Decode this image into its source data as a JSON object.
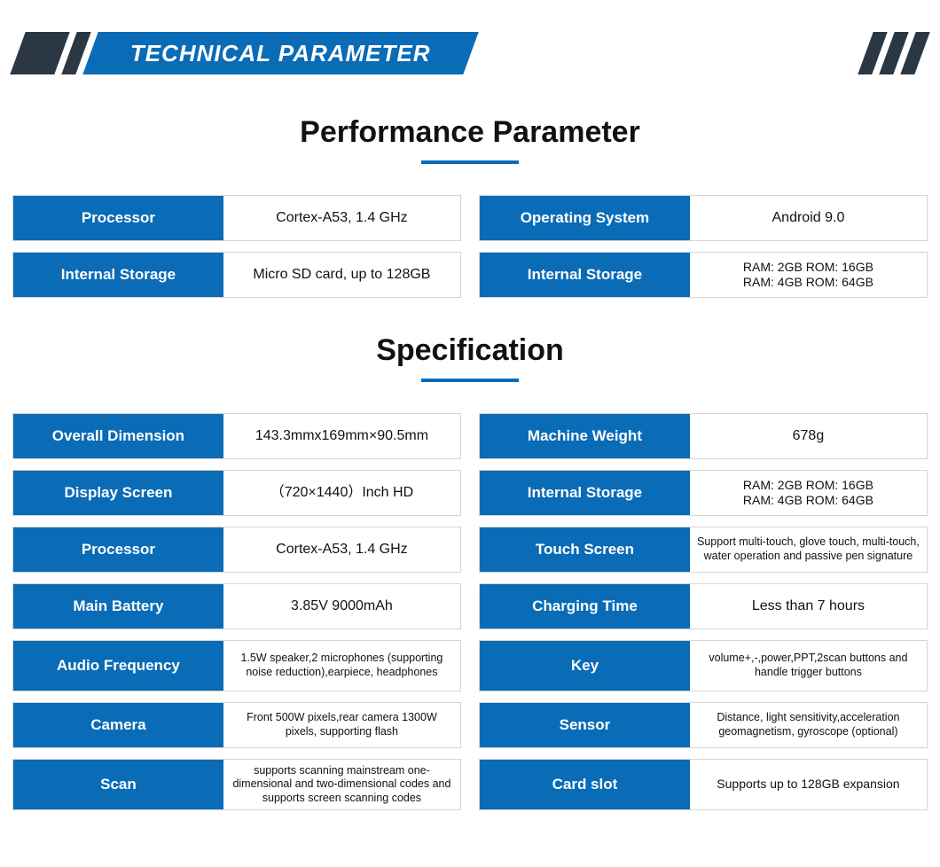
{
  "header": {
    "title": "TECHNICAL PARAMETER"
  },
  "colors": {
    "primary": "#0a6bb6",
    "dark": "#2b3844",
    "text": "#111111",
    "border": "#d5d5d5",
    "white": "#ffffff"
  },
  "sections": [
    {
      "title": "Performance Parameter",
      "left": [
        {
          "label": "Processor",
          "value": "Cortex-A53, 1.4 GHz",
          "size": ""
        },
        {
          "label": "Internal Storage",
          "value": "Micro SD card, up to 128GB",
          "size": ""
        }
      ],
      "right": [
        {
          "label": "Operating System",
          "value": "Android 9.0",
          "size": ""
        },
        {
          "label": "Internal Storage",
          "value": "RAM: 2GB ROM: 16GB\nRAM: 4GB ROM: 64GB",
          "size": "med"
        }
      ]
    },
    {
      "title": "Specification",
      "left": [
        {
          "label": "Overall Dimension",
          "value": "143.3mmx169mm×90.5mm",
          "size": ""
        },
        {
          "label": "Display Screen",
          "value": "（720×1440）Inch HD",
          "size": ""
        },
        {
          "label": "Processor",
          "value": "Cortex-A53, 1.4 GHz",
          "size": ""
        },
        {
          "label": "Main Battery",
          "value": "3.85V 9000mAh",
          "size": ""
        },
        {
          "label": "Audio Frequency",
          "value": "1.5W speaker,2 microphones (supporting noise reduction),earpiece, headphones",
          "size": "small"
        },
        {
          "label": "Camera",
          "value": "Front 500W pixels,rear camera 1300W pixels, supporting flash",
          "size": "small"
        },
        {
          "label": "Scan",
          "value": "supports scanning mainstream one-dimensional and two-dimensional codes and supports screen scanning codes",
          "size": "small"
        }
      ],
      "right": [
        {
          "label": "Machine Weight",
          "value": "678g",
          "size": ""
        },
        {
          "label": "Internal Storage",
          "value": "RAM: 2GB ROM: 16GB\nRAM: 4GB ROM: 64GB",
          "size": "med"
        },
        {
          "label": "Touch Screen",
          "value": "Support multi-touch, glove touch, multi-touch, water operation and passive pen signature",
          "size": "small"
        },
        {
          "label": "Charging Time",
          "value": "Less than 7 hours",
          "size": ""
        },
        {
          "label": "Key",
          "value": "volume+,-,power,PPT,2scan buttons and handle trigger buttons",
          "size": "small"
        },
        {
          "label": "Sensor",
          "value": "Distance, light sensitivity,acceleration geomagnetism, gyroscope (optional)",
          "size": "small"
        },
        {
          "label": "Card slot",
          "value": "Supports up to 128GB expansion",
          "size": "med"
        }
      ]
    }
  ]
}
